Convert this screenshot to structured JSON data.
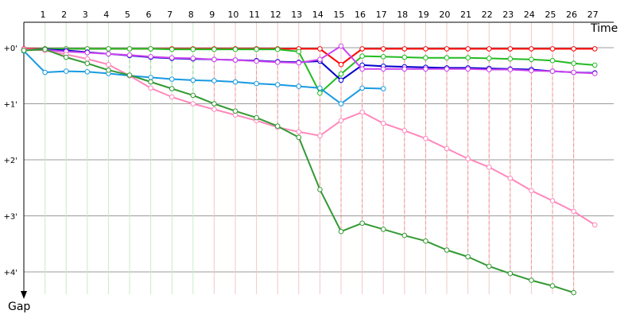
{
  "chart_data": {
    "type": "line",
    "xlabel": "Time",
    "ylabel": "Gap",
    "x_ticks": [
      "1",
      "2",
      "3",
      "4",
      "5",
      "6",
      "7",
      "8",
      "9",
      "10",
      "11",
      "12",
      "13",
      "14",
      "15",
      "16",
      "17",
      "18",
      "19",
      "20",
      "21",
      "22",
      "23",
      "24",
      "25",
      "26",
      "27"
    ],
    "y_ticks": [
      "+0'",
      "+1'",
      "+2'",
      "+3'",
      "+4'"
    ],
    "grid": true,
    "series": [
      {
        "color": "#ff0000",
        "values": [
          [
            1,
            0.02
          ],
          [
            2,
            0.02
          ],
          [
            3,
            0.02
          ],
          [
            4,
            0.02
          ],
          [
            5,
            0.02
          ],
          [
            6,
            0.02
          ],
          [
            7,
            0.02
          ],
          [
            8,
            0.02
          ],
          [
            9,
            0.02
          ],
          [
            10,
            0.02
          ],
          [
            11,
            0.02
          ],
          [
            12,
            0.02
          ],
          [
            13,
            0.02
          ],
          [
            14,
            0.02
          ],
          [
            15,
            0.02
          ],
          [
            16,
            0.3
          ],
          [
            17,
            0.02
          ],
          [
            18,
            0.02
          ],
          [
            19,
            0.02
          ],
          [
            20,
            0.02
          ],
          [
            21,
            0.02
          ],
          [
            22,
            0.02
          ],
          [
            23,
            0.02
          ],
          [
            24,
            0.02
          ],
          [
            25,
            0.02
          ],
          [
            26,
            0.02
          ],
          [
            27,
            0.02
          ],
          [
            28,
            0.02
          ]
        ]
      },
      {
        "color": "#22bb22",
        "values": [
          [
            1,
            0.04
          ],
          [
            2,
            0.02
          ],
          [
            3,
            0.02
          ],
          [
            4,
            0.02
          ],
          [
            5,
            0.02
          ],
          [
            6,
            0.02
          ],
          [
            7,
            0.02
          ],
          [
            8,
            0.03
          ],
          [
            9,
            0.03
          ],
          [
            10,
            0.03
          ],
          [
            11,
            0.03
          ],
          [
            12,
            0.03
          ],
          [
            13,
            0.03
          ],
          [
            14,
            0.07
          ],
          [
            15,
            0.81
          ],
          [
            16,
            0.47
          ],
          [
            17,
            0.15
          ],
          [
            18,
            0.16
          ],
          [
            19,
            0.17
          ],
          [
            20,
            0.18
          ],
          [
            21,
            0.18
          ],
          [
            22,
            0.18
          ],
          [
            23,
            0.19
          ],
          [
            24,
            0.2
          ],
          [
            25,
            0.21
          ],
          [
            26,
            0.23
          ],
          [
            27,
            0.28
          ],
          [
            28,
            0.31
          ]
        ]
      },
      {
        "color": "#0000cc",
        "values": [
          [
            1,
            0.04
          ],
          [
            2,
            0.03
          ],
          [
            3,
            0.05
          ],
          [
            4,
            0.08
          ],
          [
            5,
            0.11
          ],
          [
            6,
            0.14
          ],
          [
            7,
            0.17
          ],
          [
            8,
            0.19
          ],
          [
            9,
            0.2
          ],
          [
            10,
            0.21
          ],
          [
            11,
            0.22
          ],
          [
            12,
            0.23
          ],
          [
            13,
            0.25
          ],
          [
            14,
            0.26
          ],
          [
            15,
            0.24
          ],
          [
            16,
            0.58
          ],
          [
            17,
            0.31
          ],
          [
            18,
            0.33
          ],
          [
            19,
            0.34
          ],
          [
            20,
            0.35
          ],
          [
            21,
            0.36
          ],
          [
            22,
            0.36
          ],
          [
            23,
            0.37
          ],
          [
            24,
            0.38
          ],
          [
            25,
            0.39
          ],
          [
            26,
            0.42
          ],
          [
            27,
            0.44
          ],
          [
            28,
            0.45
          ]
        ]
      },
      {
        "color": "#cc44ee",
        "values": [
          [
            1,
            0.03
          ],
          [
            2,
            0.04
          ],
          [
            3,
            0.07
          ],
          [
            4,
            0.09
          ],
          [
            5,
            0.11
          ],
          [
            6,
            0.13
          ],
          [
            7,
            0.16
          ],
          [
            8,
            0.18
          ],
          [
            9,
            0.19
          ],
          [
            10,
            0.21
          ],
          [
            11,
            0.22
          ],
          [
            12,
            0.24
          ],
          [
            13,
            0.26
          ],
          [
            14,
            0.27
          ],
          [
            15,
            0.21
          ],
          [
            16,
            -0.03
          ],
          [
            17,
            0.38
          ],
          [
            18,
            0.38
          ],
          [
            19,
            0.38
          ],
          [
            20,
            0.38
          ],
          [
            21,
            0.38
          ],
          [
            22,
            0.38
          ],
          [
            23,
            0.39
          ],
          [
            24,
            0.39
          ],
          [
            25,
            0.41
          ],
          [
            26,
            0.42
          ],
          [
            27,
            0.44
          ],
          [
            28,
            0.46
          ]
        ]
      },
      {
        "color": "#1a9ae0",
        "values": [
          [
            1,
            0.06
          ],
          [
            2,
            0.44
          ],
          [
            3,
            0.42
          ],
          [
            4,
            0.43
          ],
          [
            5,
            0.46
          ],
          [
            6,
            0.5
          ],
          [
            7,
            0.53
          ],
          [
            8,
            0.56
          ],
          [
            9,
            0.58
          ],
          [
            10,
            0.59
          ],
          [
            11,
            0.61
          ],
          [
            12,
            0.64
          ],
          [
            13,
            0.66
          ],
          [
            14,
            0.69
          ],
          [
            15,
            0.72
          ],
          [
            16,
            1.0
          ],
          [
            17,
            0.72
          ],
          [
            18,
            0.73
          ]
        ]
      },
      {
        "color": "#ff88bb",
        "values": [
          [
            1,
            0.03
          ],
          [
            2,
            0.05
          ],
          [
            3,
            0.12
          ],
          [
            4,
            0.2
          ],
          [
            5,
            0.3
          ],
          [
            6,
            0.5
          ],
          [
            7,
            0.72
          ],
          [
            8,
            0.88
          ],
          [
            9,
            1.0
          ],
          [
            10,
            1.1
          ],
          [
            11,
            1.2
          ],
          [
            12,
            1.3
          ],
          [
            13,
            1.42
          ],
          [
            14,
            1.5
          ],
          [
            15,
            1.57
          ],
          [
            16,
            1.3
          ],
          [
            17,
            1.15
          ],
          [
            18,
            1.35
          ],
          [
            19,
            1.48
          ],
          [
            20,
            1.62
          ],
          [
            21,
            1.8
          ],
          [
            22,
            1.98
          ],
          [
            23,
            2.13
          ],
          [
            24,
            2.33
          ],
          [
            25,
            2.55
          ],
          [
            26,
            2.73
          ],
          [
            27,
            2.92
          ],
          [
            28,
            3.16
          ]
        ]
      },
      {
        "color": "#339933",
        "values": [
          [
            1,
            0.05
          ],
          [
            2,
            0.03
          ],
          [
            3,
            0.17
          ],
          [
            4,
            0.28
          ],
          [
            5,
            0.4
          ],
          [
            6,
            0.49
          ],
          [
            7,
            0.61
          ],
          [
            8,
            0.73
          ],
          [
            9,
            0.85
          ],
          [
            10,
            1.0
          ],
          [
            11,
            1.13
          ],
          [
            12,
            1.25
          ],
          [
            13,
            1.4
          ],
          [
            14,
            1.6
          ],
          [
            15,
            2.53
          ],
          [
            16,
            3.28
          ],
          [
            17,
            3.13
          ],
          [
            18,
            3.24
          ],
          [
            19,
            3.35
          ],
          [
            20,
            3.45
          ],
          [
            21,
            3.61
          ],
          [
            22,
            3.73
          ],
          [
            23,
            3.9
          ],
          [
            24,
            4.03
          ],
          [
            25,
            4.15
          ],
          [
            26,
            4.25
          ],
          [
            27,
            4.37
          ]
        ]
      }
    ]
  }
}
